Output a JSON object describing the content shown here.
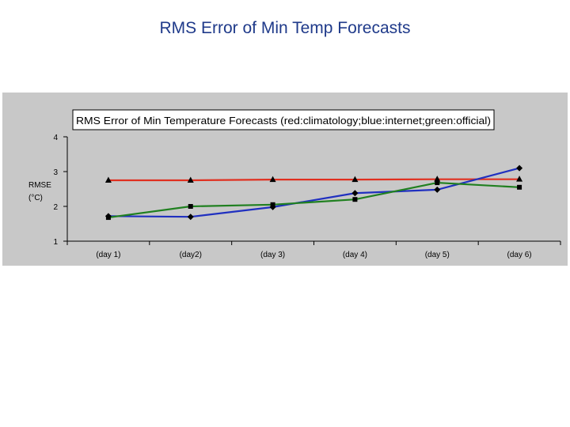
{
  "slide": {
    "title": "RMS Error of Min Temp Forecasts"
  },
  "chart_data": {
    "type": "line",
    "title": "RMS Error of Min Temperature Forecasts (red:climatology;blue:internet;green:official)",
    "xlabel": "",
    "ylabel": "RMSE (°C)",
    "ylabel_lines": [
      "RMSE",
      "(°C)"
    ],
    "categories": [
      "(day 1)",
      "(day2)",
      "(day 3)",
      "(day 4)",
      "(day 5)",
      "(day 6)"
    ],
    "ylim": [
      1,
      4
    ],
    "yticks": [
      1,
      2,
      3,
      4
    ],
    "grid": false,
    "legend": "none",
    "series": [
      {
        "color": "#e03020",
        "marker": "triangle",
        "values": [
          2.75,
          2.75,
          2.77,
          2.77,
          2.78,
          2.78
        ]
      },
      {
        "color": "#2030c0",
        "marker": "diamond",
        "values": [
          1.72,
          1.7,
          1.98,
          2.38,
          2.48,
          3.1
        ]
      },
      {
        "color": "#208020",
        "marker": "square",
        "values": [
          1.68,
          2.0,
          2.05,
          2.2,
          2.68,
          2.55
        ]
      }
    ]
  }
}
